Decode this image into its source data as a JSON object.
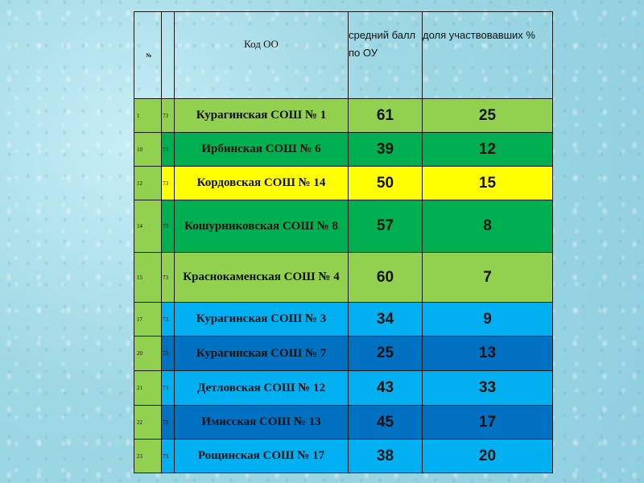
{
  "header": {
    "num": "№",
    "code": "",
    "name": "Код ОО",
    "score": "средний балл по ОУ",
    "share": "доля участвовавших %"
  },
  "rows": [
    {
      "num": "1",
      "code": "73",
      "name": "Курагинская СОШ № 1",
      "score": "61",
      "share": "25",
      "color": "#92d050"
    },
    {
      "num": "10",
      "code": "73",
      "name": "Ирбинская СОШ № 6",
      "score": "39",
      "share": "12",
      "color": "#00b050"
    },
    {
      "num": "12",
      "code": "73",
      "name": "Кордовская СОШ № 14",
      "score": "50",
      "share": "15",
      "color": "#ffff00"
    },
    {
      "num": "14",
      "code": "73",
      "name": "Кошурниковская СОШ № 8",
      "score": "57",
      "share": "8",
      "color": "#00b050"
    },
    {
      "num": "15",
      "code": "73",
      "name": "Краснокаменская СОШ № 4",
      "score": "60",
      "share": "7",
      "color": "#92d050"
    },
    {
      "num": "17",
      "code": "73",
      "name": "Курагинская СОШ № 3",
      "score": "34",
      "share": "9",
      "color": "#00b0f0"
    },
    {
      "num": "20",
      "code": "73",
      "name": "Курагинская СОШ № 7",
      "score": "25",
      "share": "13",
      "color": "#0070c0"
    },
    {
      "num": "21",
      "code": "73",
      "name": "Детловская СОШ № 12",
      "score": "43",
      "share": "33",
      "color": "#00b0f0"
    },
    {
      "num": "22",
      "code": "73",
      "name": "Имисская СОШ № 13",
      "score": "45",
      "share": "17",
      "color": "#0070c0"
    },
    {
      "num": "23",
      "code": "73",
      "name": "Рощинская СОШ № 17",
      "score": "38",
      "share": "20",
      "color": "#00b0f0"
    }
  ]
}
